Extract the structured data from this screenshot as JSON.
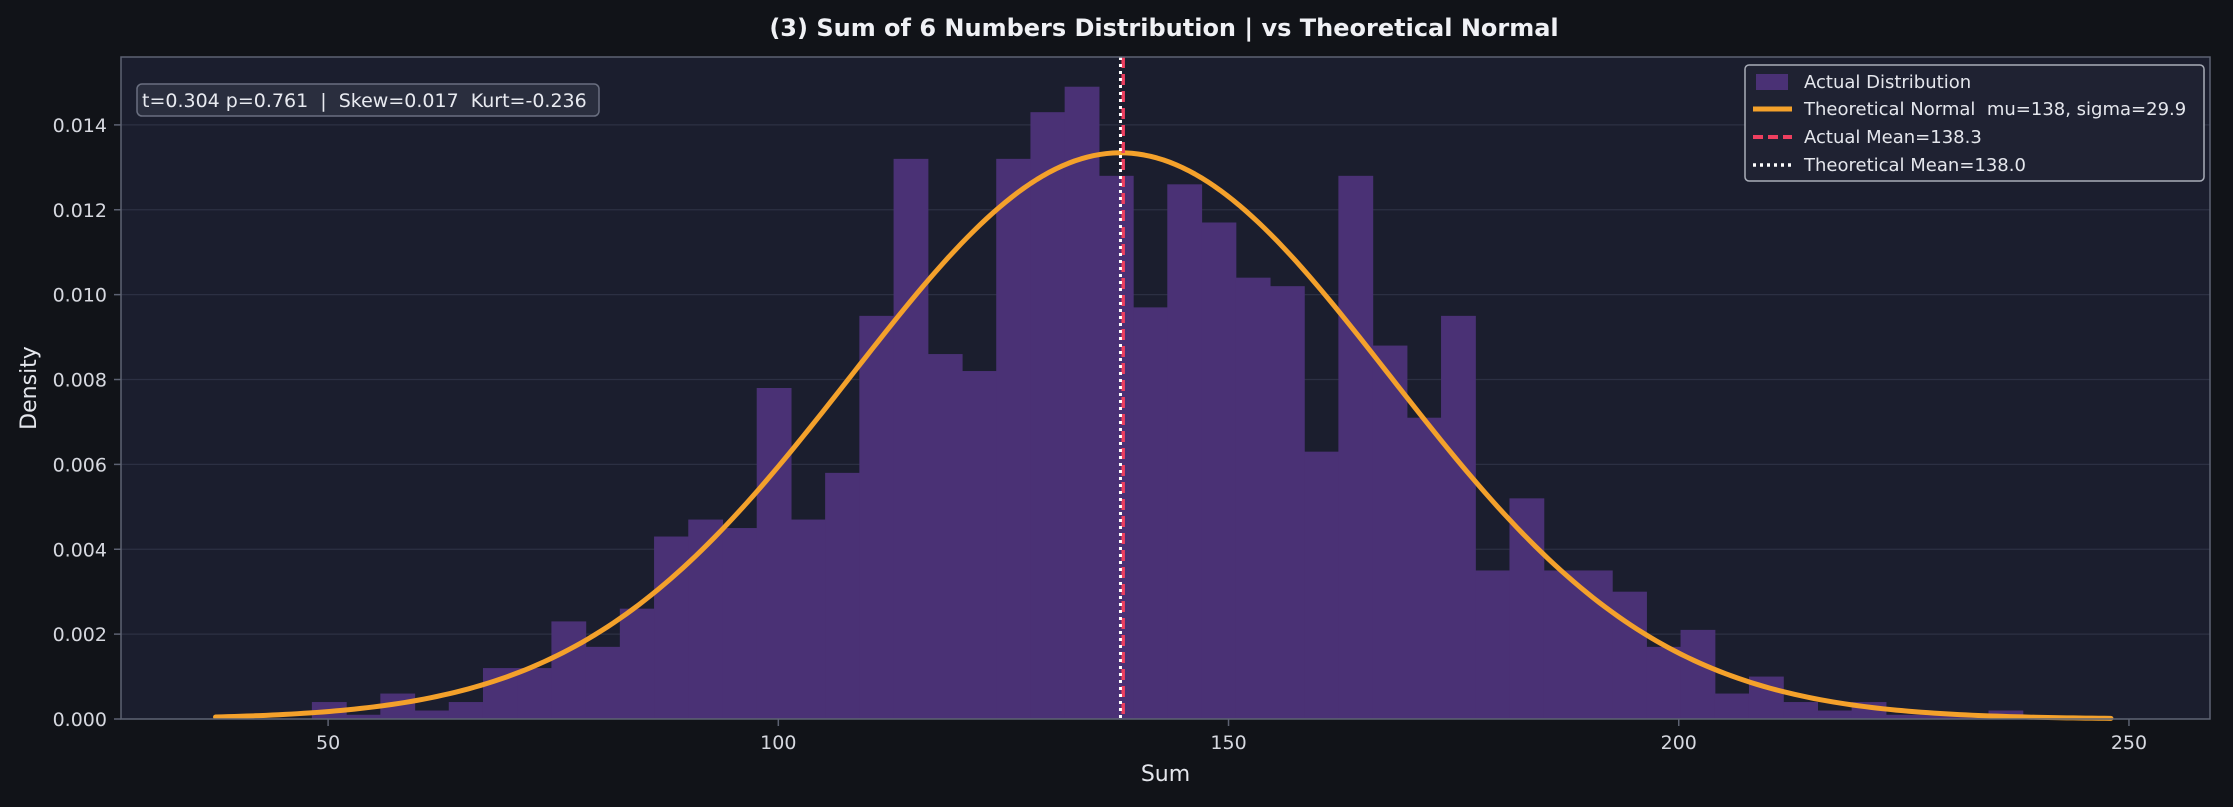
{
  "chart_data": {
    "type": "bar",
    "title": "(3) Sum of 6 Numbers Distribution  |  vs Theoretical Normal",
    "xlabel": "Sum",
    "ylabel": "Density",
    "xlim": [
      27,
      259
    ],
    "ylim": [
      0,
      0.0156
    ],
    "xticks": [
      50,
      100,
      150,
      200,
      250
    ],
    "yticks": [
      0.0,
      0.002,
      0.004,
      0.006,
      0.008,
      0.01,
      0.012,
      0.014
    ],
    "ytick_labels": [
      "0.000",
      "0.002",
      "0.004",
      "0.006",
      "0.008",
      "0.010",
      "0.012",
      "0.014"
    ],
    "grid": true,
    "stats_annotation": "t=0.304 p=0.761  |  Skew=0.017  Kurt=-0.236",
    "histogram": {
      "name": "Actual Distribution",
      "color": "#4a3175",
      "bin_edges": [
        48.2,
        52.0,
        55.8,
        59.6,
        63.4,
        67.2,
        71.0,
        74.8,
        78.6,
        82.4,
        86.2,
        90.0,
        93.8,
        97.6,
        101.4,
        105.2,
        109.0,
        112.8,
        116.6,
        120.4,
        124.2,
        128.0,
        131.8,
        135.6,
        139.4,
        143.2,
        147.0,
        150.8,
        154.6,
        158.4,
        162.2,
        166.0,
        169.8,
        173.6,
        177.4,
        181.2,
        185.0,
        188.8,
        192.6,
        196.4,
        200.2,
        204.0,
        207.8,
        211.6,
        215.4,
        219.2,
        223.0,
        226.8,
        230.6,
        234.4,
        238.2
      ],
      "densities": [
        0.0004,
        0.0001,
        0.0006,
        0.0002,
        0.0004,
        0.0012,
        0.0012,
        0.0023,
        0.0017,
        0.0026,
        0.0043,
        0.0047,
        0.0045,
        0.0078,
        0.0047,
        0.0058,
        0.0095,
        0.0132,
        0.0086,
        0.0082,
        0.0132,
        0.0143,
        0.0149,
        0.0128,
        0.0097,
        0.0126,
        0.0117,
        0.0104,
        0.0102,
        0.0063,
        0.0128,
        0.0088,
        0.0071,
        0.0095,
        0.0035,
        0.0052,
        0.0035,
        0.0035,
        0.003,
        0.0017,
        0.0021,
        0.0006,
        0.001,
        0.0004,
        0.0002,
        0.0004,
        0.0001,
        0.0001,
        0.0001,
        0.0002
      ]
    },
    "normal_curve": {
      "name": "Theoretical Normal  mu=138, sigma=29.9",
      "mu": 138,
      "sigma": 29.9,
      "x_range": [
        37.5,
        248
      ],
      "color": "#f4a12b"
    },
    "actual_mean": {
      "name": "Actual Mean=138.3",
      "value": 138.3,
      "color": "#ee3f5f"
    },
    "theoretical_mean": {
      "name": "Theoretical Mean=138.0",
      "value": 138.0,
      "color": "#ffffff"
    },
    "legend_placement": "top-right",
    "colors": {
      "figure_bg": "#111318",
      "plot_bg": "#1b1e2e",
      "grid": "#2c3043",
      "spine": "#5d6272"
    }
  }
}
